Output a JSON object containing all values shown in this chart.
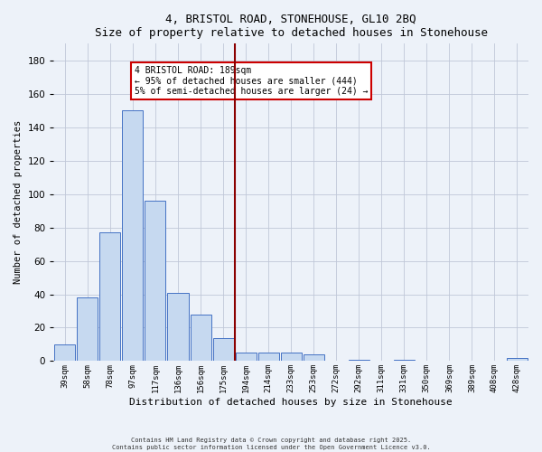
{
  "title": "4, BRISTOL ROAD, STONEHOUSE, GL10 2BQ",
  "subtitle": "Size of property relative to detached houses in Stonehouse",
  "xlabel": "Distribution of detached houses by size in Stonehouse",
  "ylabel": "Number of detached properties",
  "bar_labels": [
    "39sqm",
    "58sqm",
    "78sqm",
    "97sqm",
    "117sqm",
    "136sqm",
    "156sqm",
    "175sqm",
    "194sqm",
    "214sqm",
    "233sqm",
    "253sqm",
    "272sqm",
    "292sqm",
    "311sqm",
    "331sqm",
    "350sqm",
    "369sqm",
    "389sqm",
    "408sqm",
    "428sqm"
  ],
  "bar_values": [
    10,
    38,
    77,
    150,
    96,
    41,
    28,
    14,
    5,
    5,
    5,
    4,
    0,
    1,
    0,
    1,
    0,
    0,
    0,
    0,
    2
  ],
  "bar_color": "#c6d9f0",
  "bar_edge_color": "#4472c4",
  "vline_index": 8,
  "vline_color": "#8b0000",
  "ylim": [
    0,
    190
  ],
  "yticks": [
    0,
    20,
    40,
    60,
    80,
    100,
    120,
    140,
    160,
    180
  ],
  "annotation_title": "4 BRISTOL ROAD: 189sqm",
  "annotation_line1": "← 95% of detached houses are smaller (444)",
  "annotation_line2": "5% of semi-detached houses are larger (24) →",
  "annotation_box_color": "#ffffff",
  "annotation_box_edge": "#cc0000",
  "footer1": "Contains HM Land Registry data © Crown copyright and database right 2025.",
  "footer2": "Contains public sector information licensed under the Open Government Licence v3.0.",
  "bg_color": "#edf2f9",
  "plot_bg_color": "#edf2f9"
}
